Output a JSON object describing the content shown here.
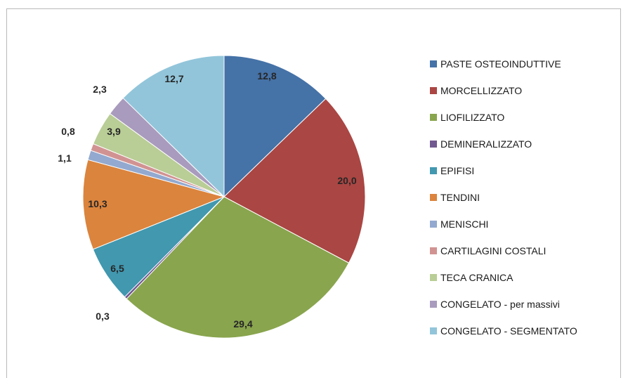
{
  "chart_data": {
    "type": "pie",
    "legend_position": "right",
    "slices": [
      {
        "label": "PASTE OSTEOINDUTTIVE",
        "value": 12.8,
        "display": "12,8",
        "color": "#4572A7"
      },
      {
        "label": "MORCELLIZZATO",
        "value": 20.0,
        "display": "20,0",
        "color": "#AA4643"
      },
      {
        "label": "LIOFILIZZATO",
        "value": 29.4,
        "display": "29,4",
        "color": "#89A54E"
      },
      {
        "label": "DEMINERALIZZATO",
        "value": 0.3,
        "display": "0,3",
        "color": "#71588F"
      },
      {
        "label": "EPIFISI",
        "value": 6.5,
        "display": "6,5",
        "color": "#4198AF"
      },
      {
        "label": "TENDINI",
        "value": 10.3,
        "display": "10,3",
        "color": "#DB843D"
      },
      {
        "label": "MENISCHI",
        "value": 1.1,
        "display": "1,1",
        "color": "#93A9CF"
      },
      {
        "label": "CARTILAGINI COSTALI",
        "value": 0.8,
        "display": "0,8",
        "color": "#D19392"
      },
      {
        "label": "TECA CRANICA",
        "value": 3.9,
        "display": "3,9",
        "color": "#B9CD96"
      },
      {
        "label": "CONGELATO - per massivi",
        "value": 2.3,
        "display": "2,3",
        "color": "#A99BBD"
      },
      {
        "label": "CONGELATO - SEGMENTATO",
        "value": 12.7,
        "display": "12,7",
        "color": "#92C5DA"
      }
    ]
  }
}
